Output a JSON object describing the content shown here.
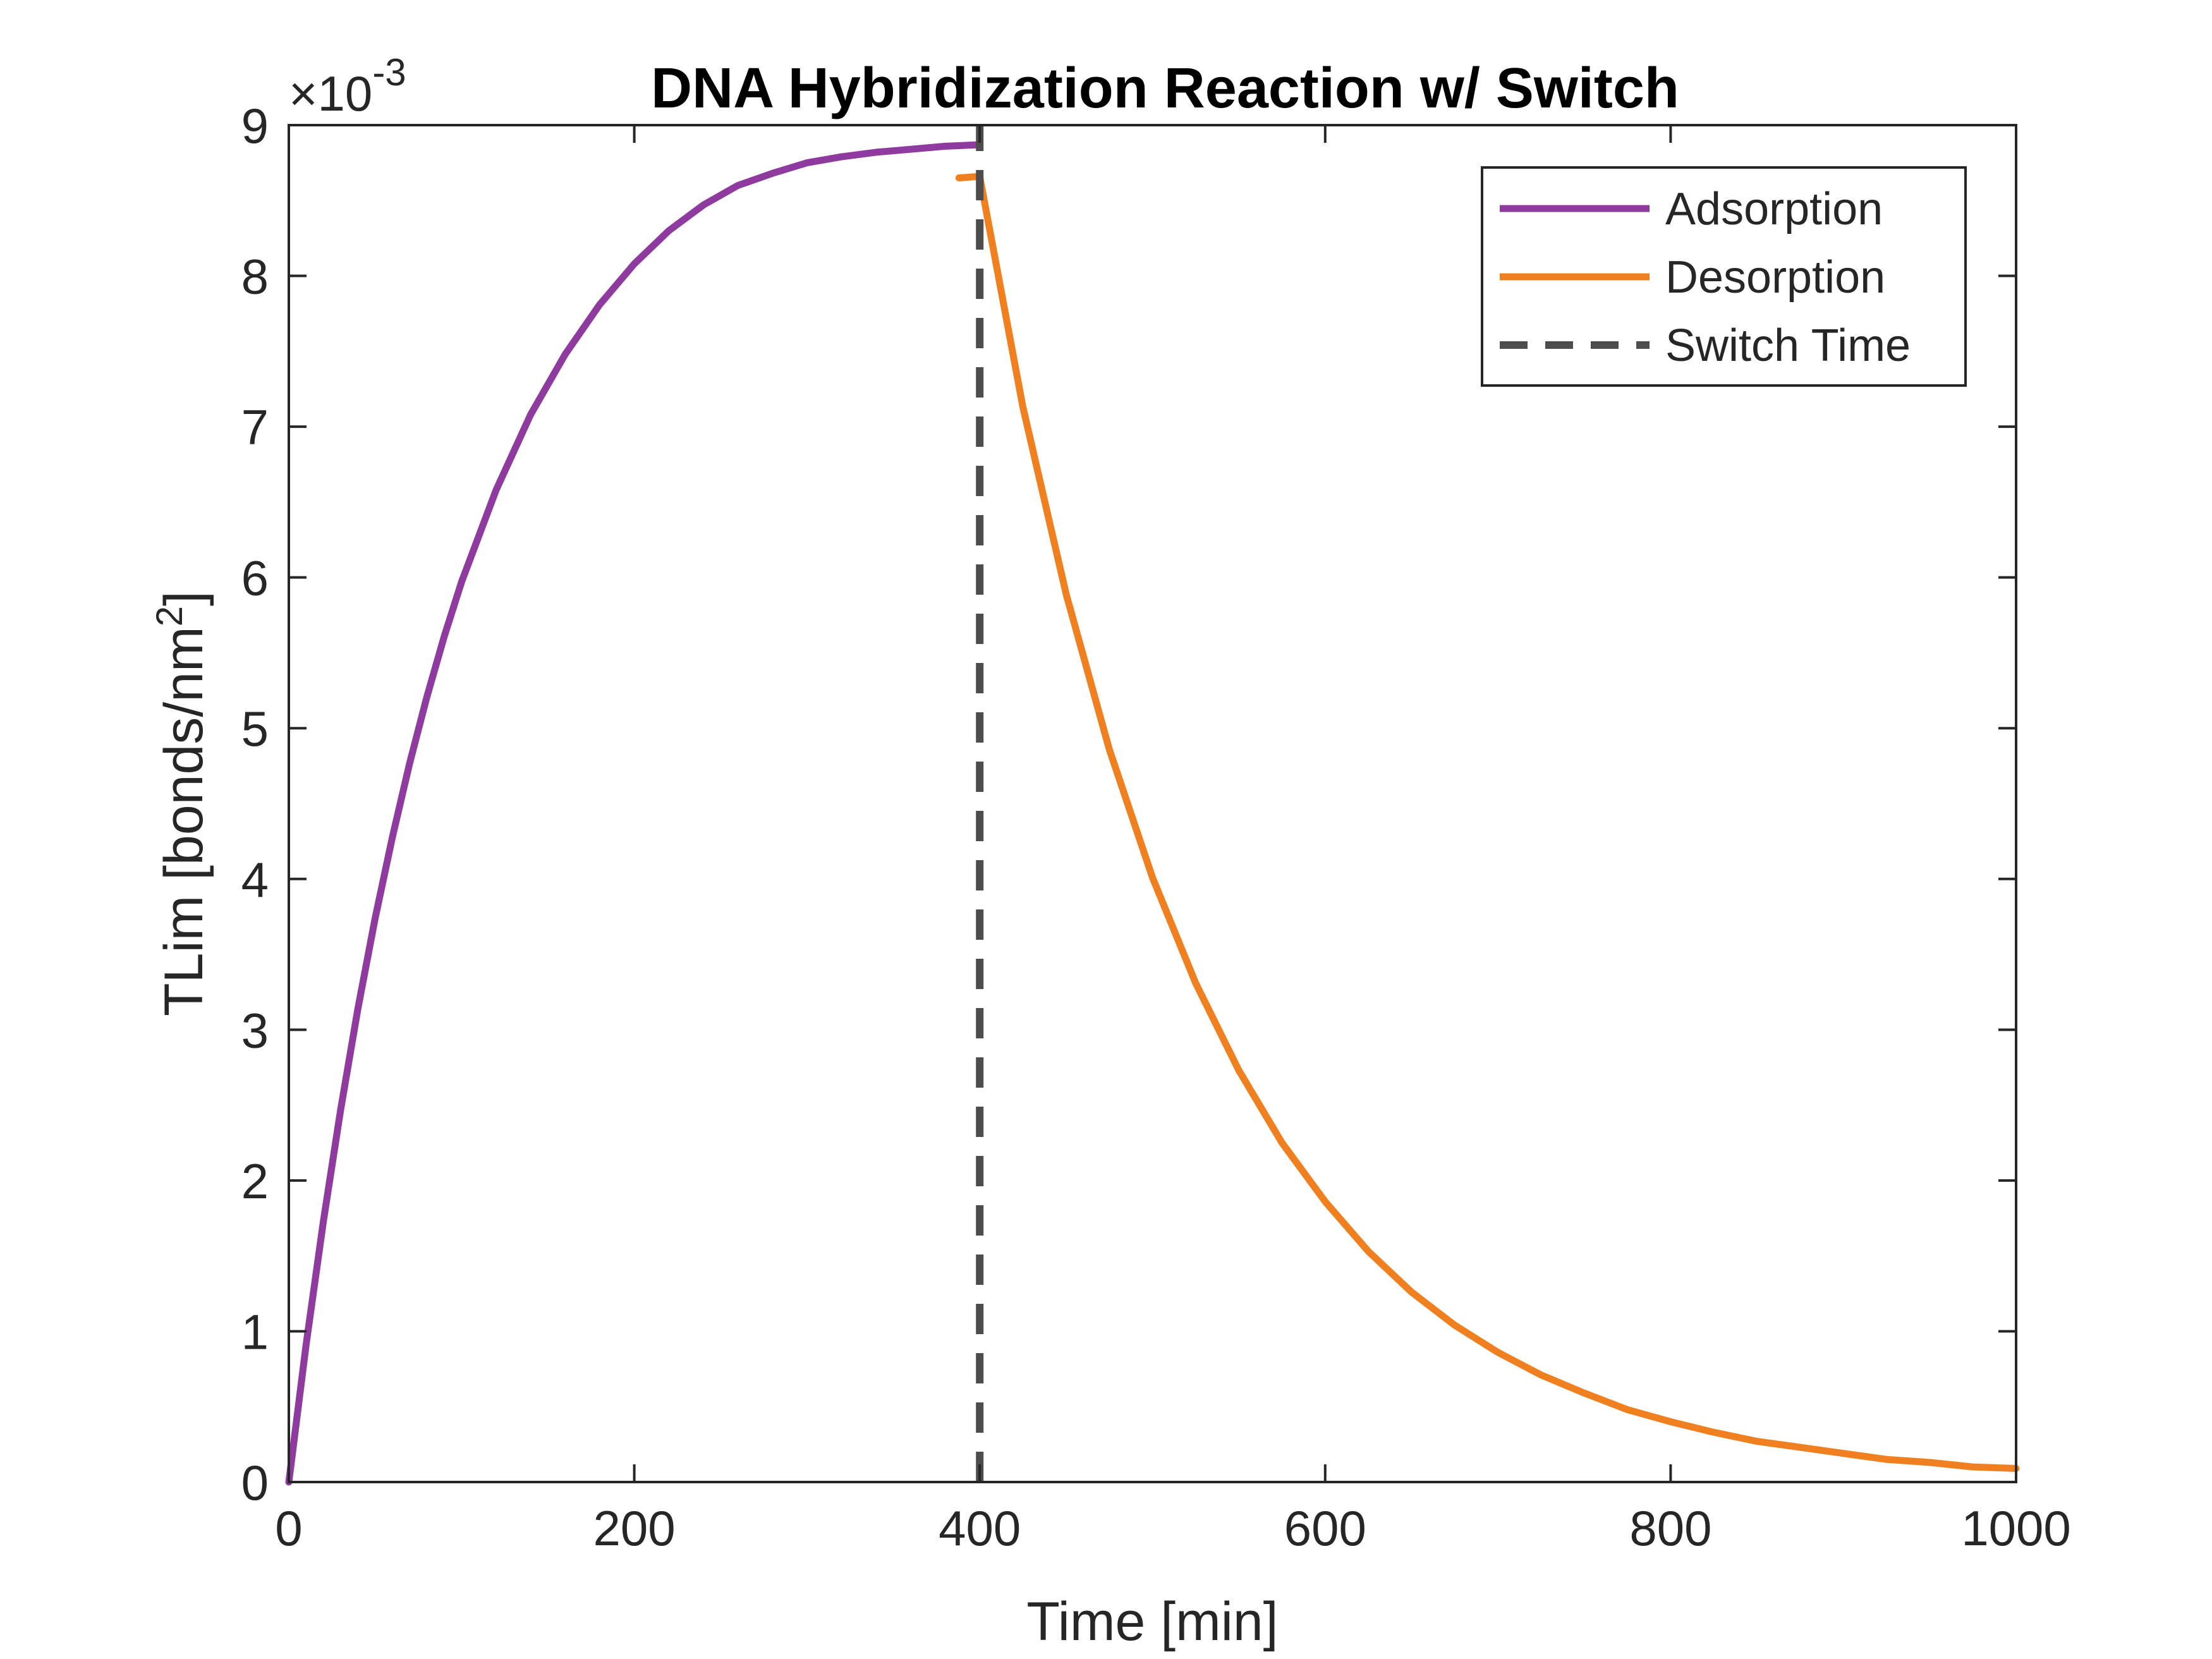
{
  "chart_data": {
    "type": "line",
    "title": "DNA Hybridization Reaction w/ Switch",
    "xlabel": "Time [min]",
    "ylabel_main": "TLim [bonds/nm",
    "ylabel_sup": "2",
    "ylabel_close": "]",
    "y_exponent_prefix": "×10",
    "y_exponent_power": "-3",
    "xlim": [
      0,
      1000
    ],
    "ylim": [
      0,
      9
    ],
    "y_scale_factor": 0.001,
    "xticks": [
      0,
      200,
      400,
      600,
      800,
      1000
    ],
    "yticks": [
      0,
      1,
      2,
      3,
      4,
      5,
      6,
      7,
      8,
      9
    ],
    "xtick_labels": [
      "0",
      "200",
      "400",
      "600",
      "800",
      "1000"
    ],
    "ytick_labels": [
      "0",
      "1",
      "2",
      "3",
      "4",
      "5",
      "6",
      "7",
      "8",
      "9"
    ],
    "grid": false,
    "legend_position": "top-right",
    "series": [
      {
        "name": "Adsorption",
        "color": "#8e3a9e",
        "style": "solid",
        "x": [
          0,
          10,
          20,
          30,
          40,
          50,
          60,
          70,
          80,
          90,
          100,
          120,
          140,
          160,
          180,
          200,
          220,
          240,
          260,
          280,
          300,
          320,
          340,
          360,
          380,
          400
        ],
        "y": [
          0,
          0.91,
          1.73,
          2.47,
          3.14,
          3.74,
          4.28,
          4.77,
          5.21,
          5.61,
          5.97,
          6.58,
          7.08,
          7.48,
          7.81,
          8.08,
          8.3,
          8.47,
          8.6,
          8.68,
          8.75,
          8.79,
          8.82,
          8.84,
          8.86,
          8.87
        ]
      },
      {
        "name": "Desorption",
        "color": "#f0801f",
        "style": "solid",
        "x": [
          388,
          400,
          425,
          450,
          475,
          500,
          525,
          550,
          575,
          600,
          625,
          650,
          675,
          700,
          725,
          750,
          775,
          800,
          825,
          850,
          875,
          900,
          925,
          950,
          975,
          1000
        ],
        "y": [
          8.65,
          8.66,
          7.13,
          5.89,
          4.86,
          4.01,
          3.31,
          2.73,
          2.25,
          1.86,
          1.53,
          1.26,
          1.04,
          0.86,
          0.71,
          0.59,
          0.48,
          0.4,
          0.33,
          0.27,
          0.23,
          0.19,
          0.15,
          0.13,
          0.1,
          0.09
        ]
      },
      {
        "name": "Switch Time",
        "color": "#4d4d4d",
        "style": "dashed",
        "x": [
          400,
          400
        ],
        "y": [
          0,
          9
        ]
      }
    ]
  }
}
